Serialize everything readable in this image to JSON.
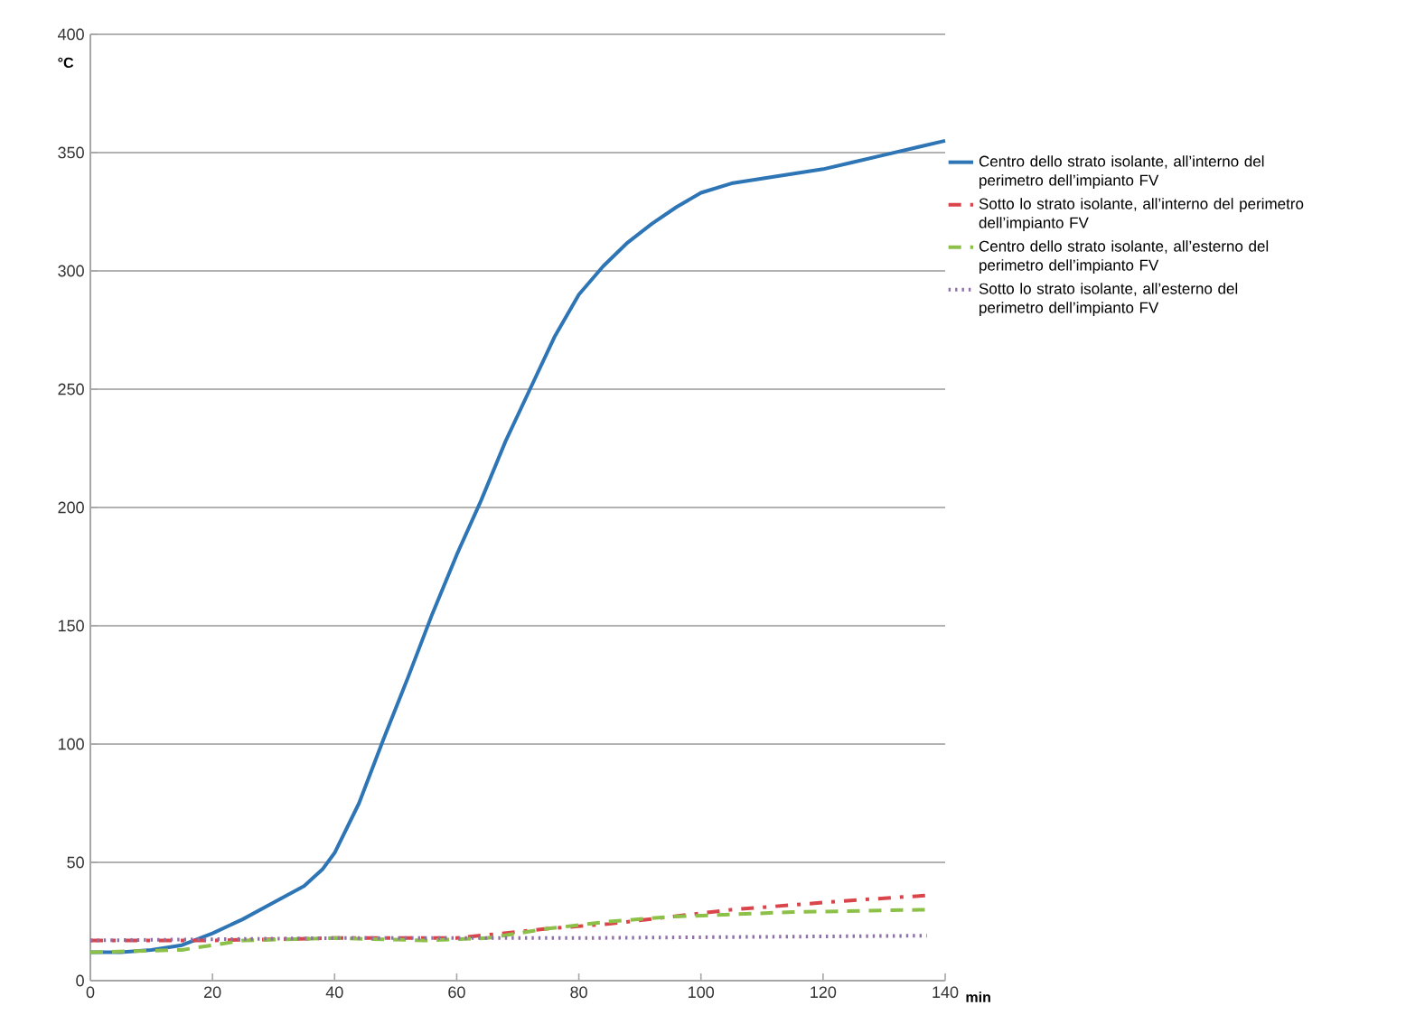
{
  "chart_data": {
    "type": "line",
    "xlabel": "min",
    "ylabel": "°C",
    "xlim": [
      0,
      140
    ],
    "xticks": [
      0,
      20,
      40,
      60,
      80,
      100,
      120,
      140
    ],
    "ylim": [
      0,
      400
    ],
    "yticks": [
      0,
      50,
      100,
      150,
      200,
      250,
      300,
      350,
      400
    ],
    "grid": "y",
    "legend": "right",
    "series": [
      {
        "name": "Centro dello strato isolante, all’interno del perimetro dell’impianto FV",
        "color": "#2e75b6",
        "line_style": "solid",
        "x": [
          0,
          5,
          10,
          15,
          20,
          25,
          30,
          35,
          38,
          40,
          44,
          48,
          52,
          56,
          60,
          64,
          68,
          72,
          76,
          80,
          84,
          88,
          92,
          96,
          100,
          105,
          110,
          115,
          120,
          125,
          130,
          135,
          140
        ],
        "values": [
          12,
          12,
          13,
          15,
          20,
          26,
          33,
          40,
          47,
          54,
          75,
          102,
          128,
          155,
          180,
          203,
          228,
          250,
          272,
          290,
          302,
          312,
          320,
          327,
          333,
          337,
          339,
          341,
          343,
          346,
          349,
          352,
          355
        ]
      },
      {
        "name": "Sotto lo strato isolante, all’interno del perimetro dell’impianto FV",
        "color": "#d9454a",
        "line_style": "dashdot",
        "x": [
          0,
          20,
          40,
          60,
          75,
          85,
          95,
          105,
          115,
          125,
          137
        ],
        "values": [
          17,
          17,
          18,
          18,
          22,
          24,
          27,
          30,
          32,
          34,
          36
        ]
      },
      {
        "name": "Centro dello strato isolante, all’esterno del perimetro dell’impianto FV",
        "color": "#8dc048",
        "line_style": "dashed",
        "x": [
          0,
          15,
          25,
          40,
          55,
          65,
          75,
          85,
          95,
          105,
          115,
          137
        ],
        "values": [
          12,
          13,
          17,
          18,
          17,
          18,
          22,
          25,
          27,
          28,
          29,
          30
        ]
      },
      {
        "name": "Sotto lo strato isolante, all’esterno del perimetro dell’impianto FV",
        "color": "#8e6fa8",
        "line_style": "dotted",
        "x": [
          0,
          40,
          80,
          137
        ],
        "values": [
          17,
          18,
          18,
          19
        ]
      }
    ]
  }
}
